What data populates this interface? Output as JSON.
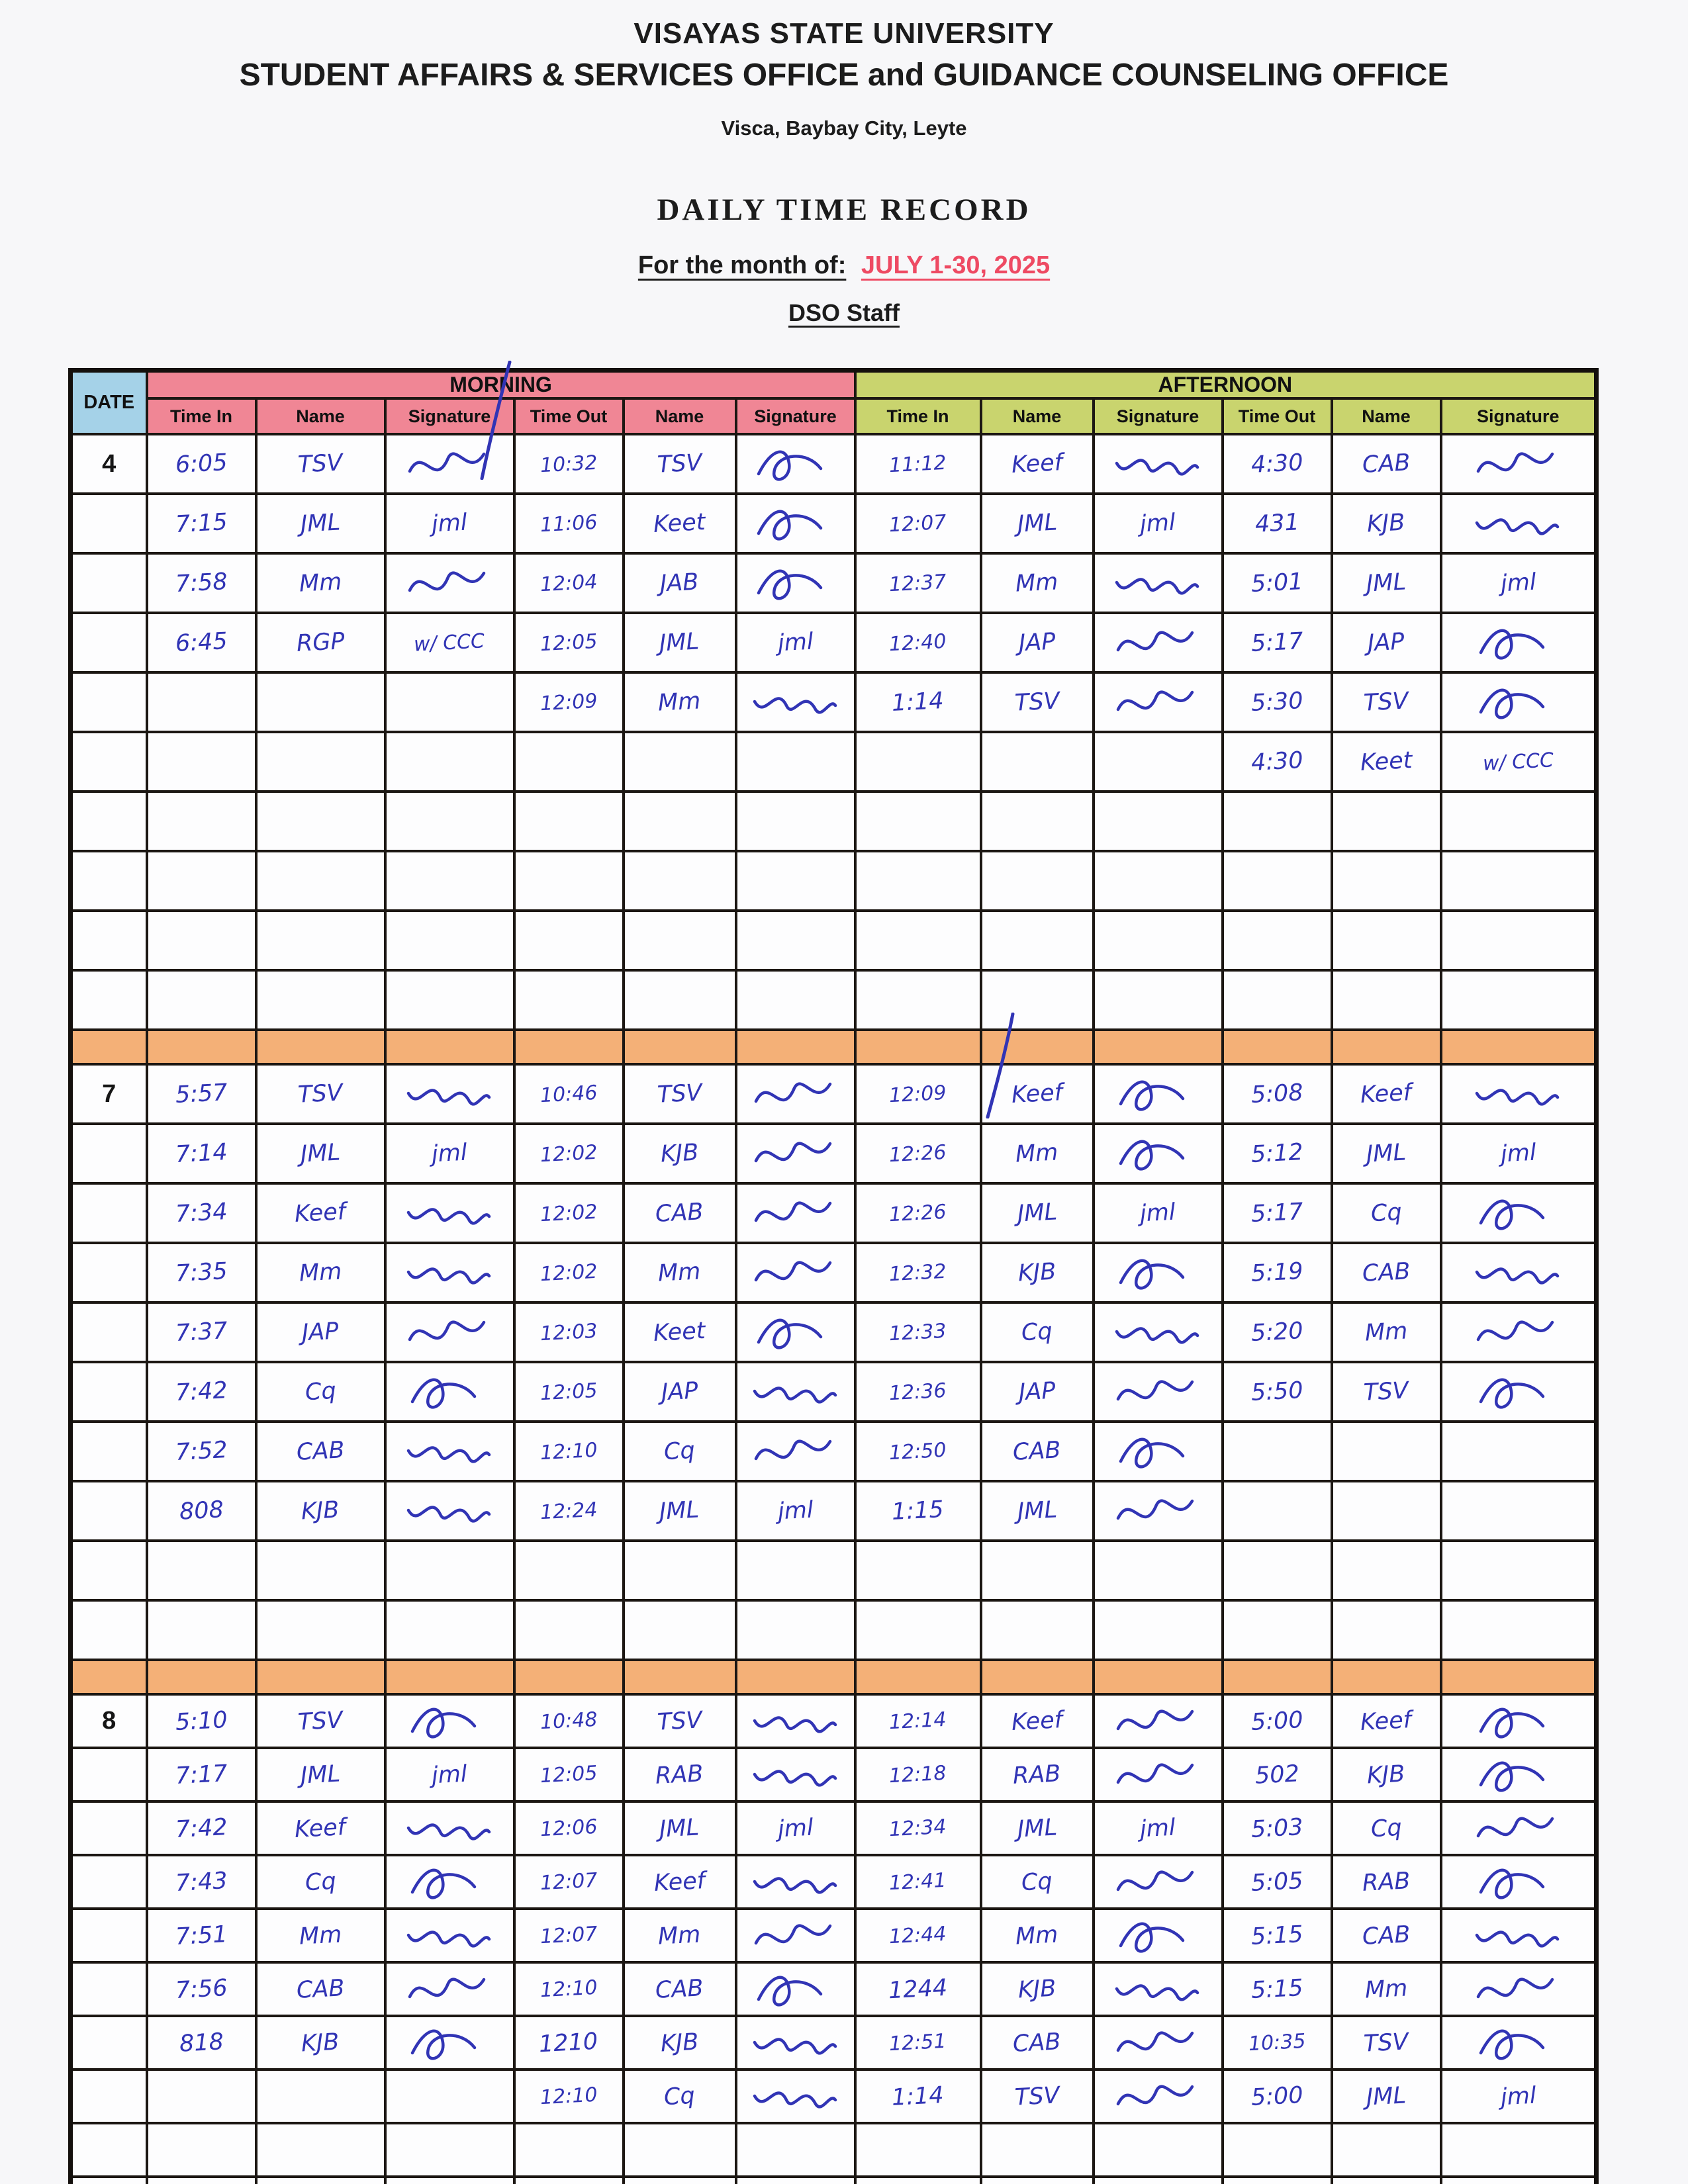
{
  "header": {
    "university": "VISAYAS STATE UNIVERSITY",
    "office": "STUDENT AFFAIRS & SERVICES OFFICE and GUIDANCE COUNSELING OFFICE",
    "address": "Visca, Baybay City, Leyte",
    "doc_title": "DAILY TIME RECORD",
    "month_label": "For the month of:",
    "month_value": "JULY 1-30, 2025",
    "subtitle": "DSO Staff"
  },
  "colors": {
    "morning": "#f08695",
    "afternoon": "#c9d46e",
    "dateblue": "#a5d2e8",
    "divider": "#f4b077",
    "ink": "#3134b5",
    "red": "#ee4a63"
  },
  "table": {
    "date_header": "DATE",
    "morning_label": "MORNING",
    "afternoon_label": "AFTERNOON",
    "columns": [
      "Time In",
      "Name",
      "Signature",
      "Time Out",
      "Name",
      "Signature",
      "Time In",
      "Name",
      "Signature",
      "Time Out",
      "Name",
      "Signature"
    ],
    "sections": [
      {
        "date": "4",
        "empty_rows": 4,
        "rows": [
          [
            "6:05",
            "TSV",
            "~",
            "10:32",
            "TSV",
            "~",
            "11:12",
            "Keef",
            "~",
            "4:30",
            "CAB",
            "~"
          ],
          [
            "7:15",
            "JML",
            "jml",
            "11:06",
            "Keet",
            "~",
            "12:07",
            "JML",
            "jml",
            "431",
            "KJB",
            "~"
          ],
          [
            "7:58",
            "Mm",
            "~",
            "12:04",
            "JAB",
            "~",
            "12:37",
            "Mm",
            "~",
            "5:01",
            "JML",
            "jml"
          ],
          [
            "6:45",
            "RGP",
            "w/ CCC",
            "12:05",
            "JML",
            "jml",
            "12:40",
            "JAP",
            "~",
            "5:17",
            "JAP",
            "~"
          ],
          [
            "",
            "",
            "",
            "12:09",
            "Mm",
            "~",
            "1:14",
            "TSV",
            "~",
            "5:30",
            "TSV",
            "~"
          ],
          [
            "",
            "",
            "",
            "",
            "",
            "",
            "",
            "",
            "",
            "4:30",
            "Keet",
            "w/ CCC"
          ]
        ]
      },
      {
        "date": "7",
        "empty_rows": 2,
        "rows": [
          [
            "5:57",
            "TSV",
            "~",
            "10:46",
            "TSV",
            "~",
            "12:09",
            "Keef",
            "~",
            "5:08",
            "Keef",
            "~"
          ],
          [
            "7:14",
            "JML",
            "jml",
            "12:02",
            "KJB",
            "~",
            "12:26",
            "Mm",
            "~",
            "5:12",
            "JML",
            "jml"
          ],
          [
            "7:34",
            "Keef",
            "~",
            "12:02",
            "CAB",
            "~",
            "12:26",
            "JML",
            "jml",
            "5:17",
            "Cq",
            "~"
          ],
          [
            "7:35",
            "Mm",
            "~",
            "12:02",
            "Mm",
            "~",
            "12:32",
            "KJB",
            "~",
            "5:19",
            "CAB",
            "~"
          ],
          [
            "7:37",
            "JAP",
            "~",
            "12:03",
            "Keet",
            "~",
            "12:33",
            "Cq",
            "~",
            "5:20",
            "Mm",
            "~"
          ],
          [
            "7:42",
            "Cq",
            "~",
            "12:05",
            "JAP",
            "~",
            "12:36",
            "JAP",
            "~",
            "5:50",
            "TSV",
            "~"
          ],
          [
            "7:52",
            "CAB",
            "~",
            "12:10",
            "Cq",
            "~",
            "12:50",
            "CAB",
            "~",
            "",
            "",
            ""
          ],
          [
            "808",
            "KJB",
            "~",
            "12:24",
            "JML",
            "jml",
            "1:15",
            "JML",
            "~",
            "",
            "",
            ""
          ]
        ]
      },
      {
        "date": "8",
        "empty_rows": 2,
        "rows": [
          [
            "5:10",
            "TSV",
            "~",
            "10:48",
            "TSV",
            "~",
            "12:14",
            "Keef",
            "~",
            "5:00",
            "Keef",
            "~"
          ],
          [
            "7:17",
            "JML",
            "jml",
            "12:05",
            "RAB",
            "~",
            "12:18",
            "RAB",
            "~",
            "502",
            "KJB",
            "~"
          ],
          [
            "7:42",
            "Keef",
            "~",
            "12:06",
            "JML",
            "jml",
            "12:34",
            "JML",
            "jml",
            "5:03",
            "Cq",
            "~"
          ],
          [
            "7:43",
            "Cq",
            "~",
            "12:07",
            "Keef",
            "~",
            "12:41",
            "Cq",
            "~",
            "5:05",
            "RAB",
            "~"
          ],
          [
            "7:51",
            "Mm",
            "~",
            "12:07",
            "Mm",
            "~",
            "12:44",
            "Mm",
            "~",
            "5:15",
            "CAB",
            "~"
          ],
          [
            "7:56",
            "CAB",
            "~",
            "12:10",
            "CAB",
            "~",
            "1244",
            "KJB",
            "~",
            "5:15",
            "Mm",
            "~"
          ],
          [
            "818",
            "KJB",
            "~",
            "1210",
            "KJB",
            "~",
            "12:51",
            "CAB",
            "~",
            "10:35",
            "TSV",
            "~"
          ],
          [
            "",
            "",
            "",
            "12:10",
            "Cq",
            "~",
            "1:14",
            "TSV",
            "~",
            "5:00",
            "JML",
            "jml"
          ]
        ]
      }
    ]
  }
}
